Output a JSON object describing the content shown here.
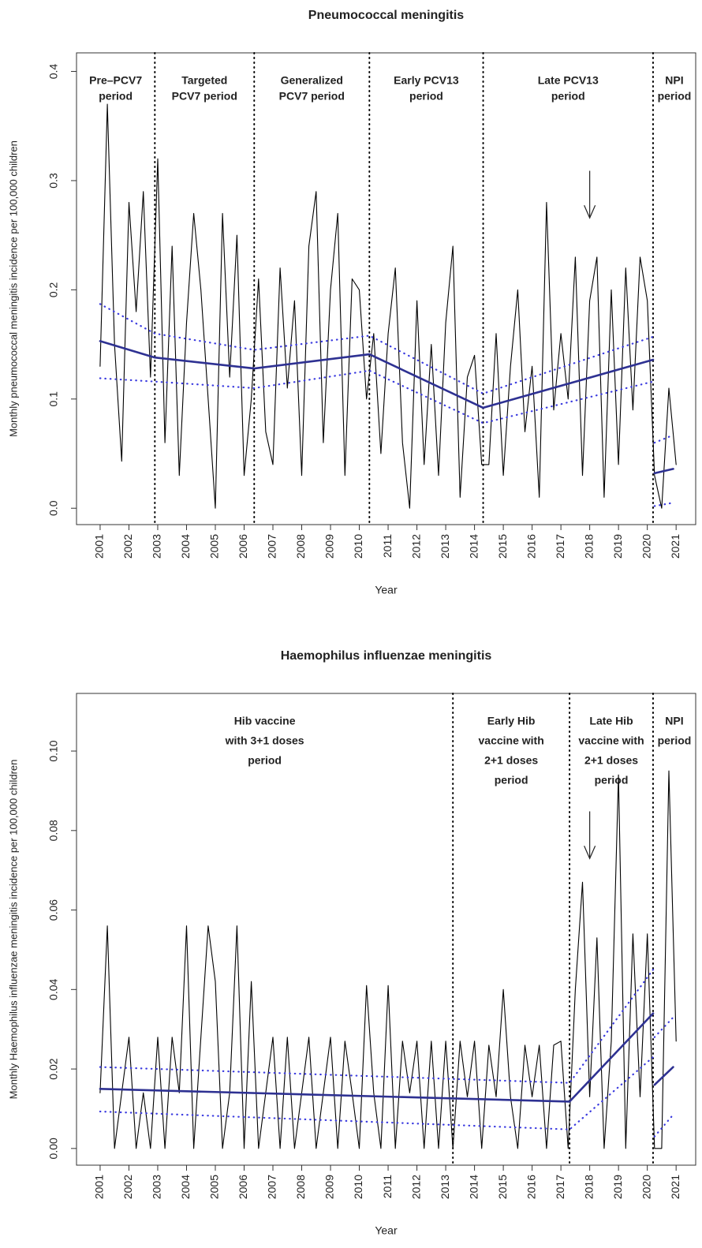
{
  "chart_data": [
    {
      "type": "line",
      "title": "Pneumococcal meningitis",
      "x_label": "Year",
      "y_label": "Monthly pneumococcal meningitis incidence per 100,000 children",
      "xlim": [
        2000.18,
        2021.68
      ],
      "ylim": [
        -0.015,
        0.417
      ],
      "xticks": [
        2001,
        2002,
        2003,
        2004,
        2005,
        2006,
        2007,
        2008,
        2009,
        2010,
        2011,
        2012,
        2013,
        2014,
        2015,
        2016,
        2017,
        2018,
        2019,
        2020,
        2021
      ],
      "yticks": [
        {
          "value": 0,
          "label": "0.0"
        },
        0.1,
        0.2,
        0.3,
        0.4
      ],
      "vlines": [
        2002.9,
        2006.35,
        2010.35,
        2014.3,
        2020.2
      ],
      "periods": [
        [
          "Pre–PCV7",
          "period"
        ],
        [
          "Targeted",
          "PCV7 period"
        ],
        [
          "Generalized",
          "PCV7 period"
        ],
        [
          "Early PCV13",
          "period"
        ],
        [
          "Late PCV13",
          "period"
        ],
        [
          "NPI",
          "period"
        ]
      ],
      "arrows": [
        2018
      ],
      "x": [
        2001,
        2001.25,
        2001.5,
        2001.75,
        2002,
        2002.25,
        2002.5,
        2002.75,
        2003,
        2003.25,
        2003.5,
        2003.75,
        2004,
        2004.25,
        2004.5,
        2004.75,
        2005,
        2005.25,
        2005.5,
        2005.75,
        2006,
        2006.25,
        2006.5,
        2006.75,
        2007,
        2007.25,
        2007.5,
        2007.75,
        2008,
        2008.25,
        2008.5,
        2008.75,
        2009,
        2009.25,
        2009.5,
        2009.75,
        2010,
        2010.25,
        2010.5,
        2010.75,
        2011,
        2011.25,
        2011.5,
        2011.75,
        2012,
        2012.25,
        2012.5,
        2012.75,
        2013,
        2013.25,
        2013.5,
        2013.75,
        2014,
        2014.25,
        2014.5,
        2014.75,
        2015,
        2015.25,
        2015.5,
        2015.75,
        2016,
        2016.25,
        2016.5,
        2016.75,
        2017,
        2017.25,
        2017.5,
        2017.75,
        2018,
        2018.25,
        2018.5,
        2018.75,
        2019,
        2019.25,
        2019.5,
        2019.75,
        2020,
        2020.25,
        2020.5,
        2020.75,
        2021
      ],
      "series": [
        {
          "color": "#000000",
          "style": "thin",
          "values": [
            0.13,
            0.37,
            0.15,
            0.043,
            0.28,
            0.18,
            0.29,
            0.12,
            0.32,
            0.06,
            0.24,
            0.03,
            0.17,
            0.27,
            0.2,
            0.1,
            0.0,
            0.27,
            0.12,
            0.25,
            0.03,
            0.1,
            0.21,
            0.07,
            0.04,
            0.22,
            0.11,
            0.19,
            0.03,
            0.24,
            0.29,
            0.06,
            0.2,
            0.27,
            0.03,
            0.21,
            0.2,
            0.1,
            0.16,
            0.05,
            0.16,
            0.22,
            0.06,
            0.0,
            0.19,
            0.04,
            0.15,
            0.03,
            0.17,
            0.24,
            0.01,
            0.12,
            0.14,
            0.04,
            0.04,
            0.16,
            0.03,
            0.13,
            0.2,
            0.07,
            0.13,
            0.01,
            0.28,
            0.09,
            0.16,
            0.1,
            0.23,
            0.03,
            0.19,
            0.23,
            0.01,
            0.2,
            0.04,
            0.22,
            0.09,
            0.23,
            0.19,
            0.03,
            0.0,
            0.11,
            0.04
          ]
        },
        {
          "color": "#2e3192",
          "style": "solid",
          "x": [
            2001,
            2002.9,
            2006.35,
            2010.35,
            2014.3,
            2020.2,
            2020.2,
            2020.25,
            2020.9
          ],
          "values": [
            0.153,
            0.138,
            0.128,
            0.141,
            0.092,
            0.136,
            null,
            0.032,
            0.036
          ]
        },
        {
          "color": "#3a3adf",
          "style": "dotted",
          "x": [
            2001,
            2002.9,
            2006.35,
            2010.35,
            2014.3,
            2020.2,
            2020.2,
            2020.25,
            2020.9
          ],
          "values": [
            0.187,
            0.16,
            0.145,
            0.158,
            0.105,
            0.157,
            null,
            0.06,
            0.067
          ]
        },
        {
          "color": "#3a3adf",
          "style": "dotted",
          "x": [
            2001,
            2002.9,
            2006.35,
            2010.35,
            2014.3,
            2020.2,
            2020.2,
            2020.25,
            2020.9
          ],
          "values": [
            0.119,
            0.116,
            0.11,
            0.126,
            0.078,
            0.116,
            null,
            0.002,
            0.005
          ]
        }
      ]
    },
    {
      "type": "line",
      "title": "Haemophilus influenzae meningitis",
      "x_label": "Year",
      "y_label": "Monthly Haemophilus influenzae meningitis incidence per 100,000 children",
      "xlim": [
        2000.18,
        2021.68
      ],
      "ylim": [
        -0.0042,
        0.1145
      ],
      "xticks": [
        2001,
        2002,
        2003,
        2004,
        2005,
        2006,
        2007,
        2008,
        2009,
        2010,
        2011,
        2012,
        2013,
        2014,
        2015,
        2016,
        2017,
        2018,
        2019,
        2020,
        2021
      ],
      "yticks": [
        {
          "value": 0,
          "label": "0.00"
        },
        0.02,
        0.04,
        0.06,
        0.08,
        {
          "value": 0.1,
          "label": "0.10"
        }
      ],
      "vlines": [
        2013.25,
        2017.3,
        2020.2
      ],
      "periods": [
        [
          "Hib vaccine",
          "with 3+1 doses",
          "period"
        ],
        [
          "Early Hib",
          "vaccine with",
          "2+1 doses",
          "period"
        ],
        [
          "Late Hib",
          "vaccine with",
          "2+1 doses",
          "period"
        ],
        [
          "NPI",
          "period"
        ]
      ],
      "arrows": [
        2018
      ],
      "x": [
        2001,
        2001.25,
        2001.5,
        2001.75,
        2002,
        2002.25,
        2002.5,
        2002.75,
        2003,
        2003.25,
        2003.5,
        2003.75,
        2004,
        2004.25,
        2004.5,
        2004.75,
        2005,
        2005.25,
        2005.5,
        2005.75,
        2006,
        2006.25,
        2006.5,
        2006.75,
        2007,
        2007.25,
        2007.5,
        2007.75,
        2008,
        2008.25,
        2008.5,
        2008.75,
        2009,
        2009.25,
        2009.5,
        2009.75,
        2010,
        2010.25,
        2010.5,
        2010.75,
        2011,
        2011.25,
        2011.5,
        2011.75,
        2012,
        2012.25,
        2012.5,
        2012.75,
        2013,
        2013.25,
        2013.5,
        2013.75,
        2014,
        2014.25,
        2014.5,
        2014.75,
        2015,
        2015.25,
        2015.5,
        2015.75,
        2016,
        2016.25,
        2016.5,
        2016.75,
        2017,
        2017.25,
        2017.5,
        2017.75,
        2018,
        2018.25,
        2018.5,
        2018.75,
        2019,
        2019.25,
        2019.5,
        2019.75,
        2020,
        2020.25,
        2020.5,
        2020.75,
        2021
      ],
      "series": [
        {
          "color": "#000000",
          "style": "thin",
          "values": [
            0.014,
            0.056,
            0,
            0.014,
            0.028,
            0,
            0.014,
            0,
            0.028,
            0,
            0.028,
            0.014,
            0.056,
            0,
            0.028,
            0.056,
            0.042,
            0,
            0.014,
            0.056,
            0,
            0.042,
            0,
            0.014,
            0.028,
            0,
            0.028,
            0,
            0.014,
            0.028,
            0,
            0.014,
            0.028,
            0,
            0.027,
            0.014,
            0,
            0.041,
            0.014,
            0,
            0.041,
            0,
            0.027,
            0.014,
            0.027,
            0,
            0.027,
            0,
            0.027,
            0,
            0.027,
            0.013,
            0.027,
            0,
            0.026,
            0.013,
            0.04,
            0.013,
            0,
            0.026,
            0.013,
            0.026,
            0,
            0.026,
            0.027,
            0,
            0.04,
            0.067,
            0.013,
            0.053,
            0,
            0.027,
            0.094,
            0,
            0.054,
            0.013,
            0.054,
            0,
            0,
            0.095,
            0.027
          ]
        },
        {
          "color": "#2e3192",
          "style": "solid",
          "x": [
            2001,
            2017.3,
            2020.2,
            2020.2,
            2020.25,
            2020.9
          ],
          "values": [
            0.015,
            0.0118,
            0.034,
            null,
            0.016,
            0.0205
          ]
        },
        {
          "color": "#3a3adf",
          "style": "dotted",
          "x": [
            2001,
            2017.3,
            2020.2,
            2020.2,
            2020.25,
            2020.9
          ],
          "values": [
            0.0205,
            0.0165,
            0.045,
            null,
            0.028,
            0.033
          ]
        },
        {
          "color": "#3a3adf",
          "style": "dotted",
          "x": [
            2001,
            2017.3,
            2020.2,
            2020.2,
            2020.25,
            2020.9
          ],
          "values": [
            0.0093,
            0.0048,
            0.023,
            null,
            0.003,
            0.0085
          ]
        }
      ]
    }
  ]
}
